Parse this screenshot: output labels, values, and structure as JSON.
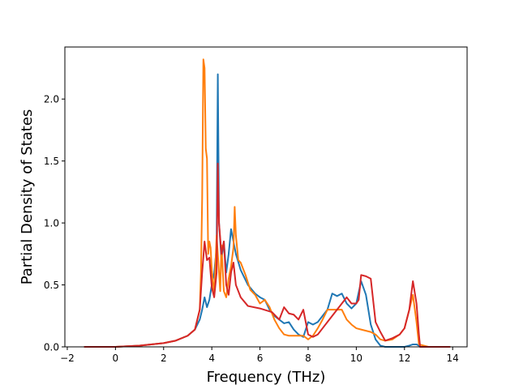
{
  "chart_data": {
    "type": "line",
    "title": "",
    "xlabel": "Frequency (THz)",
    "ylabel": "Partial Density of States",
    "xlim": [
      -2.1,
      14.6
    ],
    "ylim": [
      0,
      2.42
    ],
    "xticks": [
      -2,
      0,
      2,
      4,
      6,
      8,
      10,
      12,
      14
    ],
    "yticks": [
      0.0,
      0.5,
      1.0,
      1.5,
      2.0
    ],
    "xtick_labels": [
      "−2",
      "0",
      "2",
      "4",
      "6",
      "8",
      "10",
      "12",
      "14"
    ],
    "ytick_labels": [
      "0.0",
      "0.5",
      "1.0",
      "1.5",
      "2.0"
    ],
    "grid": false,
    "legend": "none",
    "series": [
      {
        "color": "#1f77b4",
        "x": [
          -1.3,
          0,
          1,
          2,
          2.5,
          3,
          3.3,
          3.5,
          3.6,
          3.7,
          3.8,
          3.9,
          4.0,
          4.1,
          4.2,
          4.25,
          4.3,
          4.4,
          4.5,
          4.6,
          4.7,
          4.8,
          4.9,
          5.0,
          5.2,
          5.5,
          5.8,
          6.0,
          6.2,
          6.4,
          6.6,
          6.8,
          7.0,
          7.2,
          7.4,
          7.6,
          7.8,
          8.0,
          8.2,
          8.4,
          8.6,
          8.8,
          9.0,
          9.2,
          9.4,
          9.6,
          9.8,
          10.0,
          10.2,
          10.4,
          10.6,
          10.8,
          11.0,
          11.2,
          11.5,
          11.8,
          12.0,
          12.2,
          12.35,
          12.5,
          12.6,
          12.65,
          13.0,
          13.9
        ],
        "y": [
          0.0,
          0.0,
          0.01,
          0.03,
          0.05,
          0.09,
          0.14,
          0.22,
          0.3,
          0.4,
          0.32,
          0.38,
          0.5,
          0.6,
          0.8,
          2.2,
          1.0,
          0.7,
          0.85,
          0.6,
          0.75,
          0.95,
          0.85,
          0.75,
          0.62,
          0.5,
          0.43,
          0.4,
          0.38,
          0.3,
          0.25,
          0.22,
          0.19,
          0.2,
          0.14,
          0.1,
          0.08,
          0.2,
          0.18,
          0.2,
          0.25,
          0.3,
          0.43,
          0.41,
          0.43,
          0.35,
          0.31,
          0.35,
          0.53,
          0.42,
          0.18,
          0.06,
          0.01,
          0.0,
          0.0,
          0.0,
          0.0,
          0.01,
          0.02,
          0.02,
          0.01,
          0.0,
          0.0,
          0.0
        ]
      },
      {
        "color": "#ff7f0e",
        "x": [
          -1.3,
          0,
          1,
          2,
          2.5,
          3,
          3.3,
          3.5,
          3.55,
          3.6,
          3.65,
          3.7,
          3.75,
          3.8,
          3.85,
          3.9,
          3.95,
          4.0,
          4.1,
          4.2,
          4.3,
          4.35,
          4.4,
          4.5,
          4.6,
          4.7,
          4.8,
          4.9,
          4.95,
          5.0,
          5.1,
          5.2,
          5.4,
          5.6,
          5.8,
          6.0,
          6.2,
          6.4,
          6.6,
          6.8,
          7.0,
          7.2,
          7.5,
          7.8,
          8.0,
          8.2,
          8.4,
          8.6,
          8.8,
          9.0,
          9.2,
          9.4,
          9.6,
          9.8,
          10.0,
          10.2,
          10.4,
          10.6,
          10.8,
          11.0,
          11.2,
          11.5,
          11.8,
          12.0,
          12.2,
          12.35,
          12.5,
          12.6,
          13.0,
          13.9
        ],
        "y": [
          0.0,
          0.0,
          0.01,
          0.03,
          0.05,
          0.09,
          0.14,
          0.3,
          0.6,
          1.2,
          2.32,
          2.25,
          1.6,
          1.52,
          0.75,
          0.85,
          0.8,
          0.62,
          0.42,
          0.9,
          0.6,
          0.45,
          0.82,
          0.45,
          0.4,
          0.55,
          0.65,
          0.8,
          1.13,
          0.9,
          0.7,
          0.68,
          0.58,
          0.46,
          0.42,
          0.35,
          0.38,
          0.32,
          0.22,
          0.15,
          0.1,
          0.09,
          0.09,
          0.09,
          0.06,
          0.09,
          0.15,
          0.22,
          0.3,
          0.3,
          0.3,
          0.3,
          0.22,
          0.18,
          0.15,
          0.14,
          0.13,
          0.12,
          0.1,
          0.06,
          0.05,
          0.06,
          0.1,
          0.15,
          0.3,
          0.42,
          0.2,
          0.02,
          0.0,
          0.0
        ]
      },
      {
        "color": "#d62728",
        "x": [
          -1.3,
          0,
          1,
          2,
          2.5,
          3,
          3.3,
          3.5,
          3.6,
          3.7,
          3.8,
          3.9,
          4.0,
          4.1,
          4.2,
          4.25,
          4.3,
          4.4,
          4.5,
          4.6,
          4.7,
          4.8,
          4.9,
          5.0,
          5.2,
          5.5,
          6.0,
          6.5,
          6.8,
          7.0,
          7.2,
          7.4,
          7.6,
          7.8,
          8.0,
          8.2,
          8.4,
          8.6,
          8.8,
          9.0,
          9.2,
          9.4,
          9.6,
          9.8,
          10.0,
          10.1,
          10.2,
          10.4,
          10.6,
          10.8,
          11.0,
          11.2,
          11.5,
          11.8,
          12.0,
          12.2,
          12.35,
          12.5,
          12.6,
          12.65,
          13.0,
          13.9
        ],
        "y": [
          0.0,
          0.0,
          0.01,
          0.03,
          0.05,
          0.09,
          0.14,
          0.3,
          0.6,
          0.85,
          0.7,
          0.72,
          0.48,
          0.4,
          0.6,
          1.48,
          1.0,
          0.75,
          0.85,
          0.5,
          0.42,
          0.6,
          0.68,
          0.5,
          0.4,
          0.33,
          0.31,
          0.28,
          0.22,
          0.32,
          0.27,
          0.26,
          0.22,
          0.3,
          0.1,
          0.08,
          0.1,
          0.15,
          0.2,
          0.25,
          0.3,
          0.35,
          0.4,
          0.35,
          0.35,
          0.38,
          0.58,
          0.57,
          0.55,
          0.2,
          0.12,
          0.05,
          0.07,
          0.1,
          0.15,
          0.3,
          0.53,
          0.35,
          0.1,
          0.0,
          0.0,
          0.0
        ]
      }
    ]
  }
}
